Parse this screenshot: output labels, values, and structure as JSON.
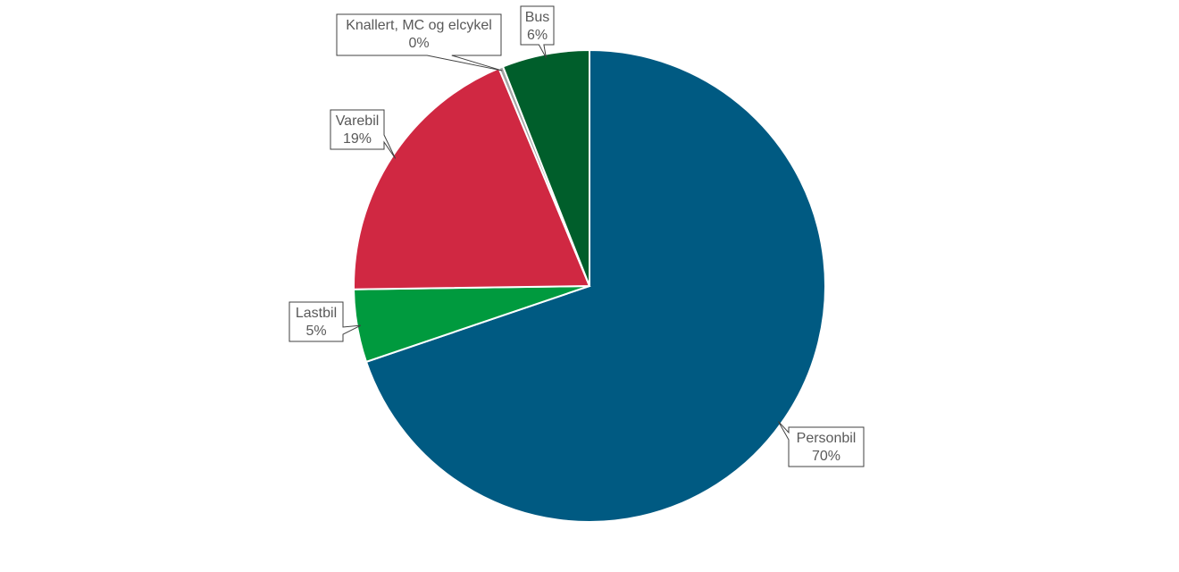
{
  "chart_data": {
    "type": "pie",
    "title": "",
    "start_angle_deg": 0,
    "direction": "clockwise",
    "legend": "none",
    "slices": [
      {
        "label": "Personbil",
        "value": 70,
        "value_label": "70%",
        "color": "#005A82"
      },
      {
        "label": "Lastbil",
        "value": 5,
        "value_label": "5%",
        "color": "#009A3E"
      },
      {
        "label": "Varebil",
        "value": 19,
        "value_label": "19%",
        "color": "#D02842"
      },
      {
        "label": "Knallert, MC og elcykel",
        "value": 0.3,
        "value_label": "0%",
        "color": "#A5A5A5"
      },
      {
        "label": "Bus",
        "value": 6,
        "value_label": "6%",
        "color": "#005E2B"
      }
    ]
  }
}
